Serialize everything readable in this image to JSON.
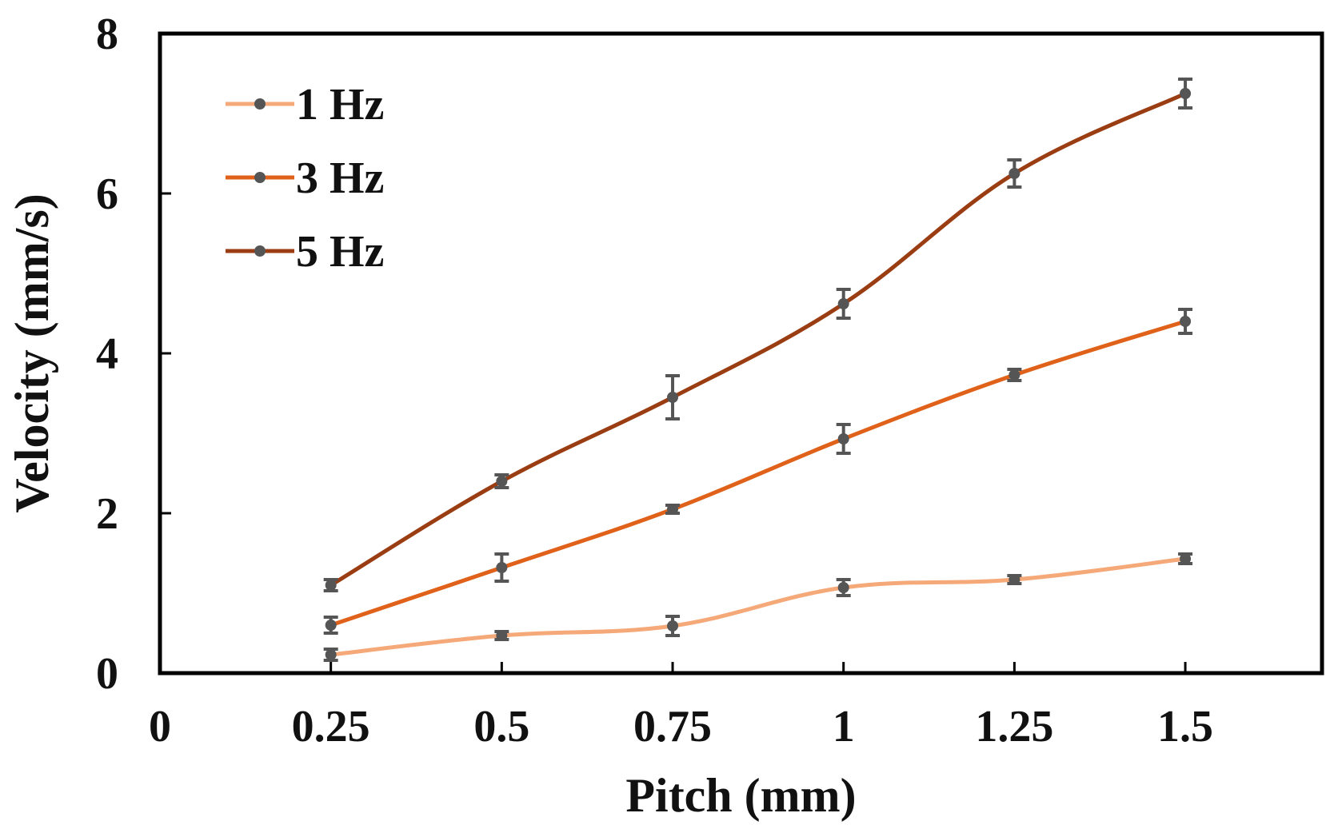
{
  "chart_data": {
    "type": "line",
    "title": "",
    "xlabel": "Pitch (mm)",
    "ylabel": "Velocity (mm/s)",
    "xlim": [
      0,
      1.7
    ],
    "ylim": [
      0,
      8
    ],
    "x_ticks": [
      "0",
      "0.25",
      "0.5",
      "0.75",
      "1",
      "1.25",
      "1.5"
    ],
    "x_tick_values": [
      0,
      0.25,
      0.5,
      0.75,
      1,
      1.25,
      1.5
    ],
    "y_ticks": [
      "0",
      "2",
      "4",
      "6",
      "8"
    ],
    "y_tick_values": [
      0,
      2,
      4,
      6,
      8
    ],
    "grid": false,
    "legend_position": "top-left",
    "x": [
      0.25,
      0.5,
      0.75,
      1,
      1.25,
      1.5
    ],
    "series": [
      {
        "name": "1 Hz",
        "color": "#f5a878",
        "values": [
          0.23,
          0.47,
          0.59,
          1.07,
          1.17,
          1.43
        ],
        "errors": [
          0.07,
          0.05,
          0.12,
          0.1,
          0.05,
          0.06
        ]
      },
      {
        "name": "3 Hz",
        "color": "#e0621a",
        "values": [
          0.6,
          1.32,
          2.05,
          2.93,
          3.73,
          4.4
        ],
        "errors": [
          0.1,
          0.17,
          0.05,
          0.18,
          0.07,
          0.15
        ]
      },
      {
        "name": "5 Hz",
        "color": "#9a3d12",
        "values": [
          1.1,
          2.4,
          3.45,
          4.62,
          6.25,
          7.25
        ],
        "errors": [
          0.07,
          0.08,
          0.27,
          0.18,
          0.17,
          0.18
        ]
      }
    ],
    "error_bar_color": "#555555",
    "marker_color": "#555555"
  }
}
